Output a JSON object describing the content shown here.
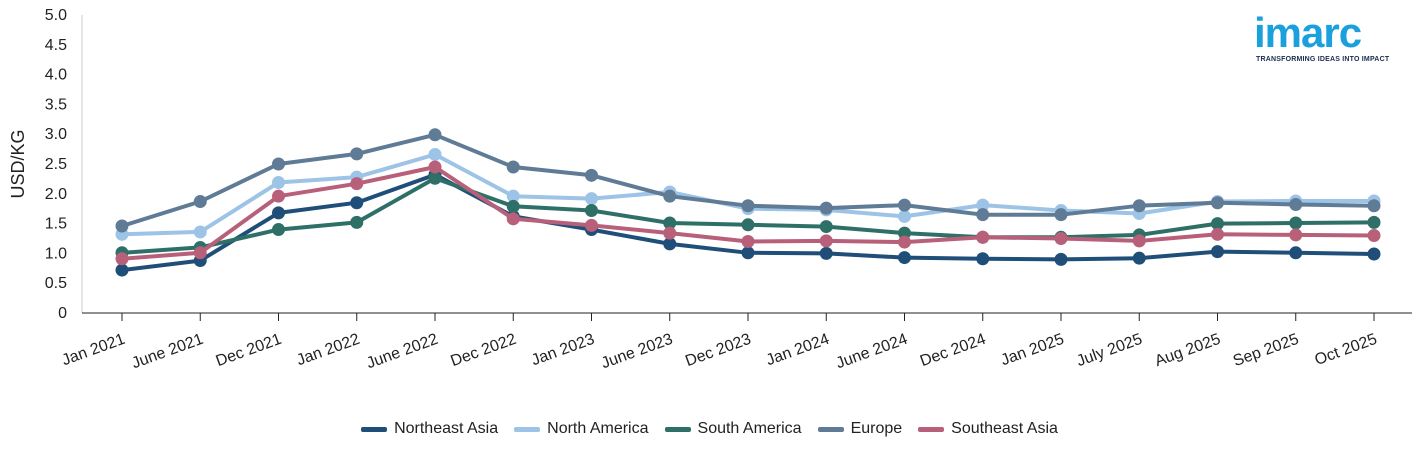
{
  "logo": {
    "word": "imarc",
    "tagline": "TRANSFORMING IDEAS INTO IMPACT"
  },
  "chart_data": {
    "type": "line",
    "title": "",
    "xlabel": "",
    "ylabel": "USD/KG",
    "ylim": [
      0,
      5
    ],
    "yticks": [
      "0",
      "0.5",
      "1.0",
      "1.5",
      "2.0",
      "2.5",
      "3.0",
      "3.5",
      "4.0",
      "4.5",
      "5.0"
    ],
    "categories": [
      "Jan 2021",
      "June 2021",
      "Dec 2021",
      "Jan 2022",
      "June 2022",
      "Dec 2022",
      "Jan 2023",
      "June 2023",
      "Dec 2023",
      "Jan 2024",
      "June 2024",
      "Dec 2024",
      "Jan 2025",
      "July 2025",
      "Aug 2025",
      "Sep 2025",
      "Oct 2025"
    ],
    "legend_position": "bottom",
    "grid": false,
    "series": [
      {
        "name": "Northeast Asia",
        "color": "#1f4e79",
        "values": [
          0.72,
          0.88,
          1.68,
          1.85,
          2.32,
          1.62,
          1.4,
          1.16,
          1.01,
          1.0,
          0.93,
          0.91,
          0.9,
          0.92,
          1.03,
          1.01,
          0.99
        ]
      },
      {
        "name": "North America",
        "color": "#9dc3e6",
        "values": [
          1.32,
          1.36,
          2.19,
          2.28,
          2.66,
          1.96,
          1.92,
          2.03,
          1.75,
          1.73,
          1.62,
          1.81,
          1.72,
          1.67,
          1.87,
          1.88,
          1.88
        ]
      },
      {
        "name": "South America",
        "color": "#2e7068",
        "values": [
          1.01,
          1.1,
          1.4,
          1.52,
          2.26,
          1.79,
          1.72,
          1.51,
          1.48,
          1.45,
          1.34,
          1.27,
          1.27,
          1.31,
          1.5,
          1.51,
          1.52
        ]
      },
      {
        "name": "Europe",
        "color": "#5f7b96",
        "values": [
          1.46,
          1.87,
          2.5,
          2.67,
          2.99,
          2.45,
          2.31,
          1.96,
          1.8,
          1.76,
          1.81,
          1.65,
          1.65,
          1.8,
          1.85,
          1.82,
          1.8
        ]
      },
      {
        "name": "Southeast Asia",
        "color": "#b8607a",
        "values": [
          0.91,
          1.01,
          1.96,
          2.17,
          2.45,
          1.58,
          1.47,
          1.34,
          1.2,
          1.21,
          1.19,
          1.27,
          1.25,
          1.21,
          1.32,
          1.31,
          1.3
        ]
      }
    ]
  }
}
